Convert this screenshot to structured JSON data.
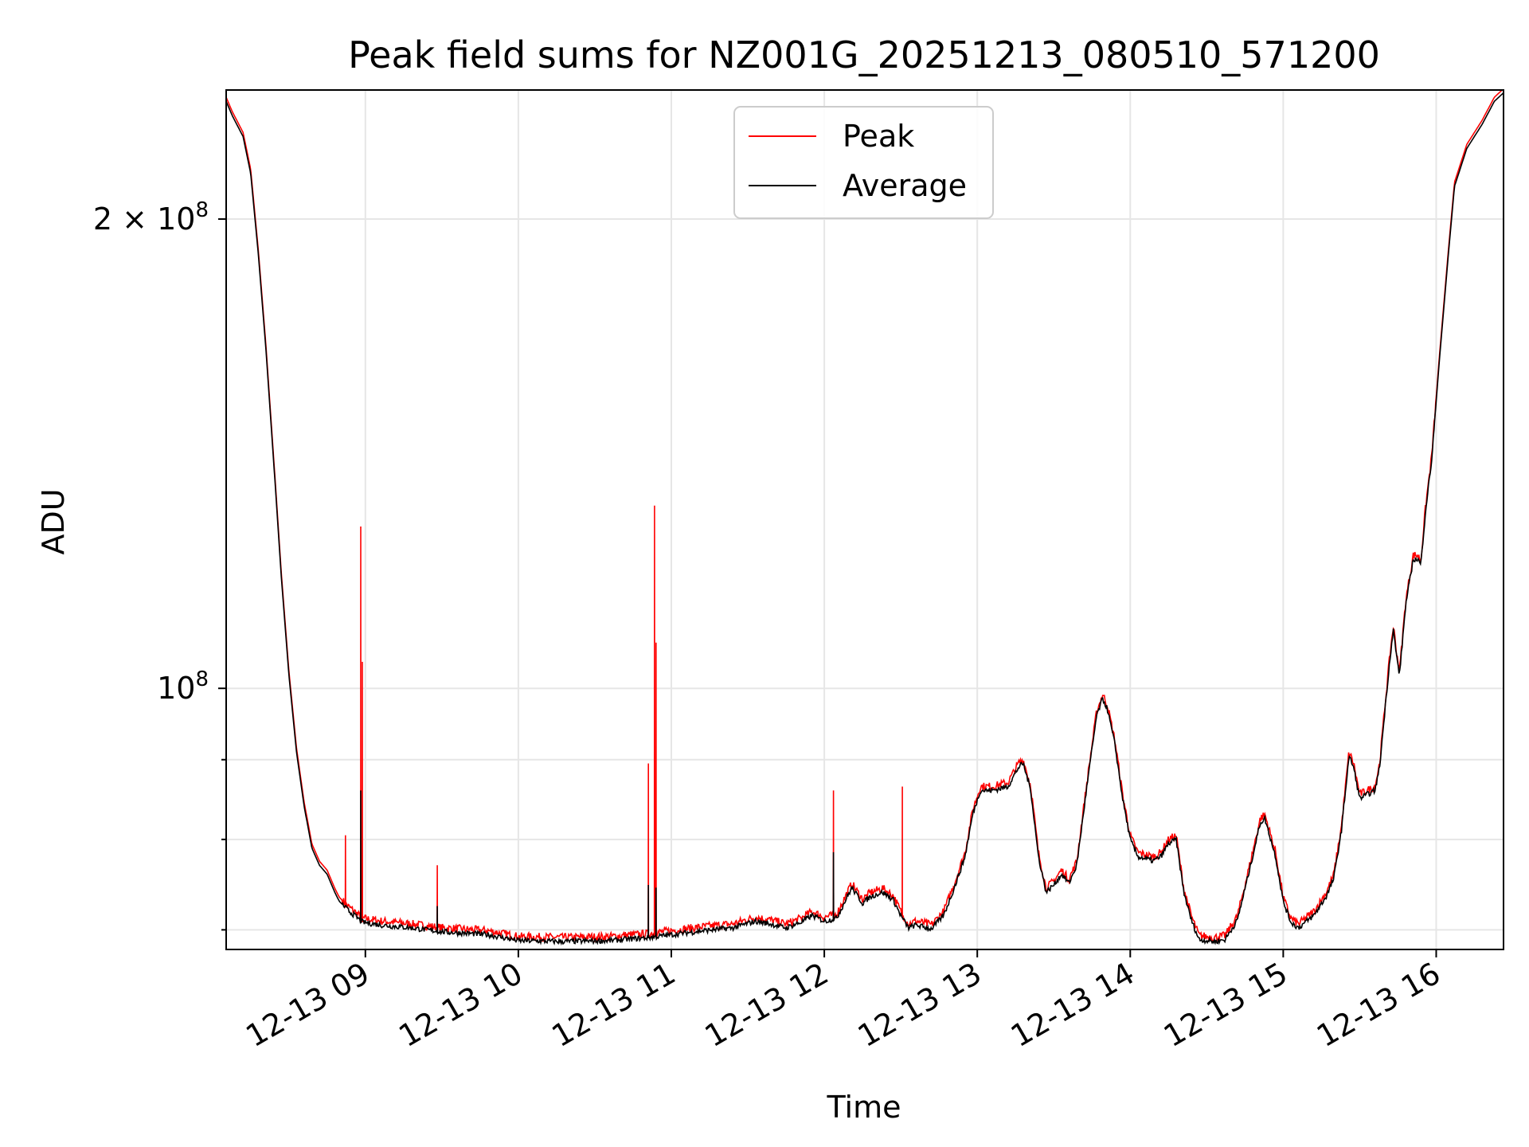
{
  "chart_data": {
    "type": "line",
    "title": "Peak field sums for NZ001G_20251213_080510_571200",
    "xlabel": "Time",
    "ylabel": "ADU",
    "yscale": "log",
    "grid": true,
    "legend": {
      "location": "top-center",
      "entries": [
        "Peak",
        "Average"
      ]
    },
    "xlim_hours": [
      8.09,
      16.44
    ],
    "ylim": [
      68000000,
      242000000
    ],
    "x_ticks": [
      {
        "value": 9,
        "label": "12-13 09"
      },
      {
        "value": 10,
        "label": "12-13 10"
      },
      {
        "value": 11,
        "label": "12-13 11"
      },
      {
        "value": 12,
        "label": "12-13 12"
      },
      {
        "value": 13,
        "label": "12-13 13"
      },
      {
        "value": 14,
        "label": "12-13 14"
      },
      {
        "value": 15,
        "label": "12-13 15"
      },
      {
        "value": 16,
        "label": "12-13 16"
      }
    ],
    "y_major_ticks": [
      {
        "value": 100000000,
        "base": "10",
        "exp": "8",
        "coef": ""
      },
      {
        "value": 200000000,
        "base": "10",
        "exp": "8",
        "coef": "2"
      }
    ],
    "y_minor_ticks": [
      70000000,
      80000000,
      90000000
    ],
    "series": [
      {
        "name": "Peak",
        "color": "#ff0000"
      },
      {
        "name": "Average",
        "color": "#000000"
      }
    ],
    "average_curve": [
      [
        8.09,
        238000000
      ],
      [
        8.13,
        233000000
      ],
      [
        8.2,
        226000000
      ],
      [
        8.25,
        214000000
      ],
      [
        8.3,
        190000000
      ],
      [
        8.35,
        165000000
      ],
      [
        8.4,
        140000000
      ],
      [
        8.45,
        118000000
      ],
      [
        8.5,
        102000000
      ],
      [
        8.55,
        91000000
      ],
      [
        8.6,
        84000000
      ],
      [
        8.65,
        79000000
      ],
      [
        8.7,
        77000000
      ],
      [
        8.75,
        76000000
      ],
      [
        8.8,
        74000000
      ],
      [
        8.83,
        73000000
      ],
      [
        8.86,
        72500000
      ],
      [
        8.89,
        72000000
      ],
      [
        8.93,
        71500000
      ],
      [
        8.98,
        70800000
      ],
      [
        9.1,
        70500000
      ],
      [
        9.3,
        70200000
      ],
      [
        9.5,
        69800000
      ],
      [
        9.8,
        69500000
      ],
      [
        10.0,
        68900000
      ],
      [
        10.3,
        68800000
      ],
      [
        10.6,
        68900000
      ],
      [
        10.85,
        69200000
      ],
      [
        11.0,
        69500000
      ],
      [
        11.2,
        69900000
      ],
      [
        11.4,
        70200000
      ],
      [
        11.55,
        70900000
      ],
      [
        11.65,
        70600000
      ],
      [
        11.75,
        70200000
      ],
      [
        11.85,
        70800000
      ],
      [
        11.92,
        71500000
      ],
      [
        12.0,
        70900000
      ],
      [
        12.08,
        71200000
      ],
      [
        12.15,
        73500000
      ],
      [
        12.18,
        74500000
      ],
      [
        12.25,
        72800000
      ],
      [
        12.3,
        73500000
      ],
      [
        12.38,
        74000000
      ],
      [
        12.45,
        73200000
      ],
      [
        12.5,
        71500000
      ],
      [
        12.55,
        70200000
      ],
      [
        12.6,
        70500000
      ],
      [
        12.7,
        70100000
      ],
      [
        12.78,
        71500000
      ],
      [
        12.85,
        74500000
      ],
      [
        12.92,
        78000000
      ],
      [
        12.97,
        83000000
      ],
      [
        13.02,
        86000000
      ],
      [
        13.1,
        86000000
      ],
      [
        13.2,
        86500000
      ],
      [
        13.27,
        89000000
      ],
      [
        13.3,
        89500000
      ],
      [
        13.35,
        86000000
      ],
      [
        13.4,
        78000000
      ],
      [
        13.45,
        74000000
      ],
      [
        13.5,
        74800000
      ],
      [
        13.55,
        76000000
      ],
      [
        13.6,
        75000000
      ],
      [
        13.65,
        77000000
      ],
      [
        13.72,
        87000000
      ],
      [
        13.78,
        96000000
      ],
      [
        13.82,
        98500000
      ],
      [
        13.85,
        97000000
      ],
      [
        13.9,
        92000000
      ],
      [
        13.95,
        85000000
      ],
      [
        14.0,
        80000000
      ],
      [
        14.05,
        78000000
      ],
      [
        14.15,
        77500000
      ],
      [
        14.2,
        78000000
      ],
      [
        14.25,
        79500000
      ],
      [
        14.3,
        80000000
      ],
      [
        14.35,
        74000000
      ],
      [
        14.4,
        71000000
      ],
      [
        14.45,
        69000000
      ],
      [
        14.55,
        68800000
      ],
      [
        14.62,
        69000000
      ],
      [
        14.7,
        71000000
      ],
      [
        14.78,
        76500000
      ],
      [
        14.85,
        82000000
      ],
      [
        14.88,
        82500000
      ],
      [
        14.95,
        78000000
      ],
      [
        15.0,
        73000000
      ],
      [
        15.05,
        70800000
      ],
      [
        15.1,
        70200000
      ],
      [
        15.2,
        71500000
      ],
      [
        15.28,
        73500000
      ],
      [
        15.33,
        75500000
      ],
      [
        15.38,
        81000000
      ],
      [
        15.43,
        90500000
      ],
      [
        15.46,
        89000000
      ],
      [
        15.5,
        85000000
      ],
      [
        15.55,
        85500000
      ],
      [
        15.6,
        86000000
      ],
      [
        15.63,
        89000000
      ],
      [
        15.67,
        98000000
      ],
      [
        15.7,
        105000000
      ],
      [
        15.72,
        109000000
      ],
      [
        15.74,
        105000000
      ],
      [
        15.76,
        102000000
      ],
      [
        15.8,
        113000000
      ],
      [
        15.85,
        121000000
      ],
      [
        15.88,
        121000000
      ],
      [
        15.9,
        120000000
      ],
      [
        15.93,
        130000000
      ],
      [
        15.97,
        140000000
      ],
      [
        16.02,
        162000000
      ],
      [
        16.08,
        190000000
      ],
      [
        16.12,
        210000000
      ],
      [
        16.2,
        222000000
      ],
      [
        16.3,
        230000000
      ],
      [
        16.38,
        238000000
      ],
      [
        16.44,
        241000000
      ]
    ],
    "peak_spikes": [
      [
        8.87,
        80500000
      ],
      [
        8.97,
        127000000
      ],
      [
        8.98,
        104000000
      ],
      [
        9.47,
        77000000
      ],
      [
        10.85,
        89500000
      ],
      [
        10.89,
        131000000
      ],
      [
        10.9,
        107000000
      ],
      [
        12.06,
        86000000
      ],
      [
        12.51,
        86500000
      ]
    ],
    "average_spikes": [
      [
        8.97,
        86000000
      ],
      [
        10.85,
        74800000
      ],
      [
        10.9,
        74500000
      ],
      [
        12.06,
        78500000
      ],
      [
        9.47,
        72500000
      ]
    ]
  }
}
